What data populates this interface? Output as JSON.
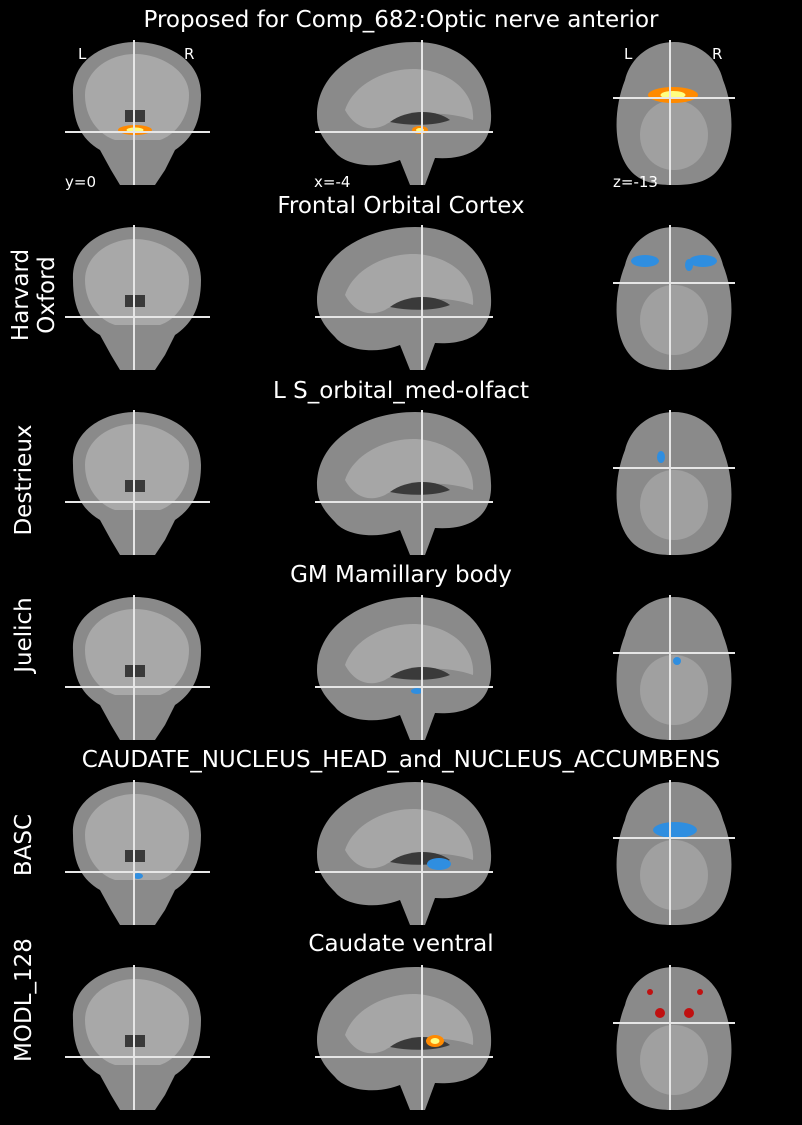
{
  "figure_title": "Proposed for Comp_682:Optic nerve anterior",
  "orientation": {
    "left": "L",
    "right": "R"
  },
  "coords": {
    "coronal": "y=0",
    "sagittal": "x=-4",
    "axial": "z=-13"
  },
  "rows": [
    {
      "atlas": "",
      "region": "",
      "overlay": "hot"
    },
    {
      "atlas": "Harvard\nOxford",
      "region": "Frontal Orbital Cortex",
      "overlay": "blue"
    },
    {
      "atlas": "Destrieux",
      "region": "L S_orbital_med-olfact",
      "overlay": "blue"
    },
    {
      "atlas": "Juelich",
      "region": "GM Mamillary body",
      "overlay": "blue"
    },
    {
      "atlas": "BASC",
      "region": "CAUDATE_NUCLEUS_HEAD_and_NUCLEUS_ACCUMBENS",
      "overlay": "blue"
    },
    {
      "atlas": "MODL_128",
      "region": "Caudate ventral",
      "overlay": "red"
    }
  ],
  "colors": {
    "background": "#000000",
    "brain": "#8a8a8a",
    "crosshair": "#e6e6e6",
    "blue": "#2f8ee0",
    "hot": "#ff8a00",
    "red": "#c01010"
  }
}
